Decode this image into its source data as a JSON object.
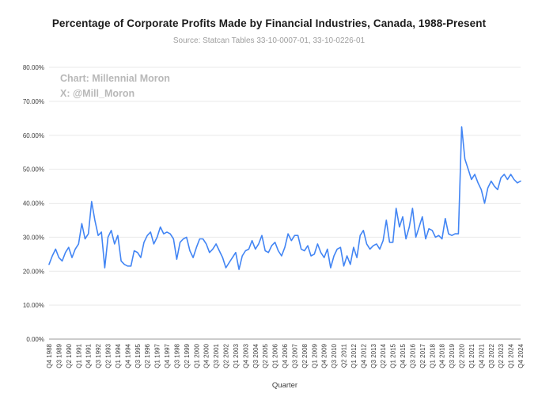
{
  "chart": {
    "title": "Percentage of Corporate Profits Made by Financial Industries, Canada, 1988-Present",
    "source": "Source: Statcan Tables 33-10-0007-01, 33-10-0226-01",
    "watermark_line1": "Chart: Millennial Moron",
    "watermark_line2": "X: @Mill_Moron",
    "xlabel": "Quarter"
  },
  "chart_data": {
    "type": "line",
    "title": "Percentage of Corporate Profits Made by Financial Industries, Canada, 1988-Present",
    "xlabel": "Quarter",
    "ylabel": "",
    "ylim": [
      0,
      80
    ],
    "grid": true,
    "legend": false,
    "line_color": "#4285f4",
    "y_tick_labels": [
      "0.00%",
      "10.00%",
      "20.00%",
      "30.00%",
      "40.00%",
      "50.00%",
      "60.00%",
      "70.00%",
      "80.00%"
    ],
    "x_tick_every": 3,
    "x_tick_labels": [
      "Q4 1988",
      "Q3 1989",
      "Q2 1990",
      "Q1 1991",
      "Q4 1991",
      "Q3 1992",
      "Q2 1993",
      "Q1 1994",
      "Q4 1994",
      "Q3 1995",
      "Q2 1996",
      "Q1 1997",
      "Q4 1997",
      "Q3 1998",
      "Q2 1999",
      "Q1 2000",
      "Q4 2000",
      "Q3 2001",
      "Q2 2002",
      "Q1 2003",
      "Q4 2003",
      "Q3 2004",
      "Q2 2005",
      "Q1 2006",
      "Q4 2006",
      "Q3 2007",
      "Q2 2008",
      "Q1 2009",
      "Q4 2009",
      "Q3 2010",
      "Q2 2011",
      "Q1 2012",
      "Q4 2012",
      "Q3 2013",
      "Q2 2014",
      "Q1 2015",
      "Q4 2015",
      "Q3 2016",
      "Q2 2017",
      "Q1 2018",
      "Q4 2018",
      "Q3 2019",
      "Q2 2020",
      "Q1 2021",
      "Q4 2021",
      "Q3 2022",
      "Q2 2023",
      "Q1 2024",
      "Q4 2024"
    ],
    "x_start_quarter": "Q4 1988",
    "x_end_quarter": "Q4 2024",
    "values": [
      22,
      24.5,
      26.5,
      24,
      23,
      25.5,
      27,
      24,
      26.5,
      28,
      34,
      29.5,
      31,
      40.5,
      35,
      30.5,
      31.5,
      21,
      30,
      32,
      28,
      30.5,
      23,
      22,
      21.5,
      21.5,
      26,
      25.5,
      24,
      28.5,
      30.5,
      31.5,
      28,
      30,
      33,
      31,
      31.5,
      31,
      29.5,
      23.5,
      28.5,
      29.5,
      30,
      26,
      24,
      27,
      29.5,
      29.5,
      28,
      25.5,
      26.5,
      28,
      26,
      24,
      21,
      22.5,
      24,
      25.5,
      20.5,
      24.5,
      26,
      26.5,
      29,
      26.5,
      28,
      30.5,
      26,
      25.5,
      27.5,
      28.5,
      26,
      24.5,
      27,
      31,
      29,
      30.5,
      30.5,
      26.5,
      26,
      27.5,
      24.5,
      25,
      28,
      25.5,
      24,
      26.5,
      21,
      24.5,
      26.5,
      27,
      21.5,
      24.5,
      22,
      27,
      24,
      30.5,
      32,
      28,
      26.5,
      27.5,
      28,
      26.5,
      29,
      35,
      28.5,
      28.5,
      38.5,
      33,
      36,
      29.5,
      33,
      38.5,
      30,
      33,
      36,
      29.5,
      32.5,
      32,
      30,
      30.5,
      29.5,
      35.5,
      31,
      30.5,
      31,
      31,
      62.5,
      53,
      50,
      47,
      48.5,
      46,
      44,
      40,
      44.5,
      46.5,
      45,
      44,
      47.5,
      48.5,
      47,
      48.5,
      47,
      46,
      46.5
    ]
  }
}
